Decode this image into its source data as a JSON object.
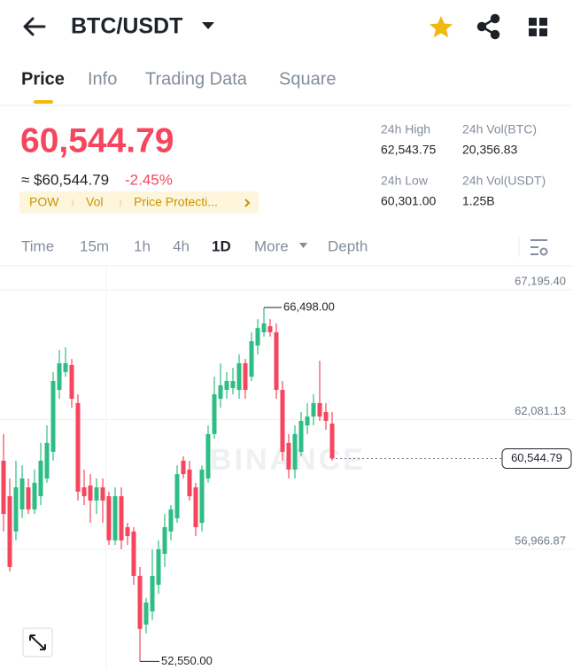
{
  "header": {
    "title": "BTC/USDT"
  },
  "tabs": [
    "Price",
    "Info",
    "Trading Data",
    "Square"
  ],
  "price": {
    "last": "60,544.79",
    "approx": "≈ $60,544.79",
    "change": "-2.45%"
  },
  "tags": [
    "POW",
    "Vol",
    "Price Protecti..."
  ],
  "stats": [
    {
      "label": "24h High",
      "value": "62,543.75"
    },
    {
      "label": "24h Vol(BTC)",
      "value": "20,356.83"
    },
    {
      "label": "24h Low",
      "value": "60,301.00"
    },
    {
      "label": "24h Vol(USDT)",
      "value": "1.25B"
    }
  ],
  "intervals": [
    "Time",
    "15m",
    "1h",
    "4h",
    "1D",
    "More",
    "Depth"
  ],
  "watermark": "BINANCE",
  "chart_data": {
    "type": "candlestick",
    "up_color": "#2ebd85",
    "down_color": "#f6465d",
    "open": [
      60460,
      59060,
      57670,
      58540,
      59410,
      58540,
      59060,
      59760,
      60810,
      63250,
      63950,
      64230,
      62730,
      59410,
      59480,
      58890,
      59410,
      59060,
      57320,
      59060,
      57840,
      57670,
      55920,
      54000,
      54520,
      55570,
      56790,
      57670,
      58190,
      60460,
      60110,
      59410,
      58010,
      59760,
      61510,
      62900,
      63250,
      63320,
      63250,
      64300,
      63770,
      65000,
      65520,
      65760,
      65520,
      63250,
      61160,
      60110,
      60810,
      61850,
      62200,
      62730,
      62380,
      61920
    ],
    "high": [
      61510,
      59760,
      60460,
      60280,
      59760,
      60110,
      61160,
      61850,
      63950,
      64820,
      64930,
      64470,
      63080,
      60110,
      59930,
      59760,
      59760,
      59240,
      59410,
      59410,
      58010,
      57840,
      56270,
      55050,
      56970,
      57320,
      58360,
      58710,
      60280,
      60630,
      60460,
      59590,
      60280,
      61850,
      63770,
      64300,
      63950,
      64120,
      64650,
      64470,
      65520,
      66040,
      66498,
      66040,
      65870,
      63600,
      61510,
      61850,
      62380,
      62730,
      63080,
      64400,
      62730,
      62380
    ],
    "low": [
      57670,
      56090,
      57320,
      58190,
      58360,
      58360,
      58710,
      59590,
      60460,
      62900,
      63770,
      62550,
      58890,
      58710,
      58010,
      58360,
      58010,
      57140,
      57140,
      56970,
      57140,
      55570,
      52550,
      53650,
      54170,
      55220,
      56270,
      57320,
      58010,
      59760,
      58890,
      57490,
      57670,
      59590,
      61330,
      62550,
      62900,
      63080,
      62900,
      62900,
      63600,
      64650,
      65350,
      65350,
      62900,
      60460,
      59760,
      59760,
      60630,
      61510,
      61850,
      62030,
      61680,
      60460
    ],
    "close": [
      58360,
      56270,
      59410,
      59760,
      58540,
      59590,
      60460,
      61160,
      63600,
      64300,
      64300,
      62900,
      59240,
      59060,
      58890,
      59410,
      58890,
      57320,
      59060,
      57320,
      57490,
      55920,
      53830,
      54870,
      55920,
      56970,
      57840,
      58540,
      59930,
      59930,
      59060,
      57840,
      60110,
      61510,
      63080,
      63430,
      63600,
      63600,
      64300,
      63250,
      65170,
      65690,
      65870,
      65520,
      63250,
      60810,
      60110,
      61510,
      62030,
      62200,
      62730,
      62200,
      62030,
      60544.79
    ],
    "ylim": [
      52250,
      68140
    ],
    "yticks": [
      {
        "value": 56966.87,
        "label": "56,966.87"
      },
      {
        "value": 62081.13,
        "label": "62,081.13"
      },
      {
        "value": 67195.4,
        "label": "67,195.40"
      }
    ],
    "grid": true,
    "max_marker": {
      "value": 66498.0,
      "label": "66,498.00"
    },
    "min_marker": {
      "value": 52550.0,
      "label": "52,550.00"
    },
    "last_price": {
      "value": 60544.79,
      "label": "60,544.79"
    }
  }
}
